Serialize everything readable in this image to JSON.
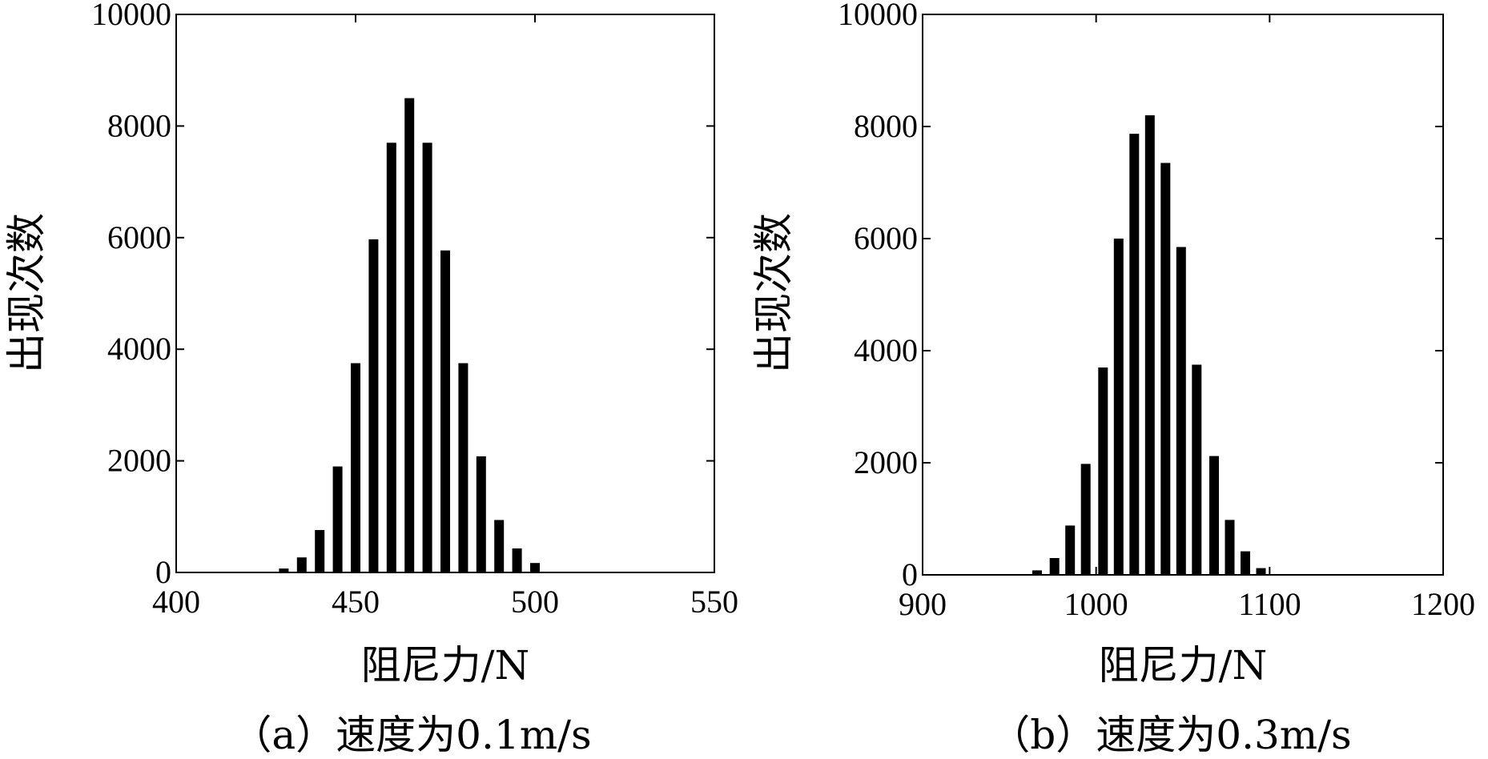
{
  "chart_data": [
    {
      "type": "bar",
      "ylabel": "出现次数",
      "xlabel": "阻尼力/N",
      "caption": "（a）速度为0.1m/s",
      "xlim": [
        400,
        550
      ],
      "ylim": [
        0,
        10000
      ],
      "xticks": [
        "400",
        "450",
        "500",
        "550"
      ],
      "yticks": [
        "0",
        "2000",
        "4000",
        "6000",
        "8000",
        "10000"
      ],
      "grid": false,
      "color": "#000000",
      "x": [
        430,
        435,
        440,
        445,
        450,
        455,
        460,
        465,
        470,
        475,
        480,
        485,
        490,
        495,
        500
      ],
      "values": [
        70,
        270,
        760,
        1900,
        3750,
        5970,
        7700,
        8500,
        7700,
        5770,
        3750,
        2080,
        940,
        430,
        170
      ]
    },
    {
      "type": "bar",
      "ylabel": "出现次数",
      "xlabel": "阻尼力/N",
      "caption": "（b）速度为0.3m/s",
      "xlim": [
        900,
        1200
      ],
      "ylim": [
        0,
        10000
      ],
      "xticks": [
        "900",
        "1000",
        "1100",
        "1200"
      ],
      "yticks": [
        "0",
        "2000",
        "4000",
        "6000",
        "8000",
        "10000"
      ],
      "grid": false,
      "color": "#000000",
      "x": [
        966,
        976,
        985,
        994,
        1004,
        1013,
        1022,
        1031,
        1040,
        1049,
        1058,
        1068,
        1077,
        1086,
        1095
      ],
      "values": [
        80,
        300,
        880,
        1980,
        3700,
        6000,
        7870,
        8200,
        7350,
        5850,
        3750,
        2120,
        980,
        420,
        120
      ]
    }
  ]
}
